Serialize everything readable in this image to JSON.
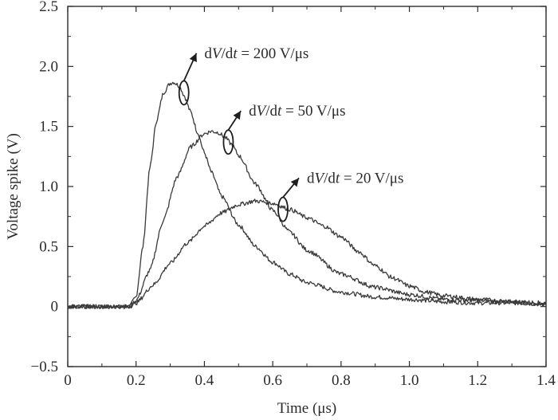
{
  "chart_data": {
    "type": "line",
    "xlabel": "Time (μs)",
    "ylabel": "Voltage spike (V)",
    "xlim": [
      0,
      1.4
    ],
    "ylim": [
      -0.5,
      2.5
    ],
    "xticks": [
      0,
      0.2,
      0.4,
      0.6,
      0.8,
      1.0,
      1.2,
      1.4
    ],
    "xtick_labels": [
      "0",
      "0.2",
      "0.4",
      "0.6",
      "0.8",
      "1.0",
      "1.2",
      "1.4"
    ],
    "yticks": [
      -0.5,
      0,
      0.5,
      1.0,
      1.5,
      2.0,
      2.5
    ],
    "ytick_labels": [
      "−0.5",
      "0",
      "0.5",
      "1.0",
      "1.5",
      "2.0",
      "2.5"
    ],
    "grid": false,
    "series": [
      {
        "name": "dV/dt = 200 V/μs",
        "x": [
          0,
          0.18,
          0.2,
          0.22,
          0.24,
          0.26,
          0.28,
          0.3,
          0.31,
          0.32,
          0.33,
          0.34,
          0.36,
          0.38,
          0.4,
          0.42,
          0.45,
          0.5,
          0.55,
          0.6,
          0.65,
          0.7,
          0.8,
          0.9,
          1.0,
          1.1,
          1.2,
          1.3,
          1.4
        ],
        "y": [
          0,
          0,
          0.08,
          0.5,
          1.15,
          1.55,
          1.78,
          1.86,
          1.87,
          1.85,
          1.82,
          1.76,
          1.62,
          1.45,
          1.28,
          1.12,
          0.92,
          0.68,
          0.5,
          0.37,
          0.27,
          0.2,
          0.12,
          0.08,
          0.06,
          0.04,
          0.03,
          0.03,
          0.02
        ]
      },
      {
        "name": "dV/dt = 50 V/μs",
        "x": [
          0,
          0.18,
          0.2,
          0.24,
          0.28,
          0.32,
          0.36,
          0.4,
          0.42,
          0.44,
          0.46,
          0.48,
          0.5,
          0.55,
          0.6,
          0.65,
          0.7,
          0.8,
          0.9,
          1.0,
          1.1,
          1.2,
          1.3,
          1.4
        ],
        "y": [
          0,
          0,
          0.05,
          0.3,
          0.72,
          1.08,
          1.33,
          1.44,
          1.46,
          1.45,
          1.41,
          1.35,
          1.26,
          1.02,
          0.8,
          0.62,
          0.47,
          0.27,
          0.16,
          0.1,
          0.06,
          0.05,
          0.04,
          0.03
        ]
      },
      {
        "name": "dV/dt = 20 V/μs",
        "x": [
          0,
          0.18,
          0.2,
          0.25,
          0.3,
          0.35,
          0.4,
          0.45,
          0.5,
          0.55,
          0.6,
          0.65,
          0.7,
          0.75,
          0.8,
          0.85,
          0.9,
          0.95,
          1.0,
          1.05,
          1.1,
          1.2,
          1.3,
          1.4
        ],
        "y": [
          0,
          0,
          0.03,
          0.18,
          0.36,
          0.53,
          0.67,
          0.78,
          0.85,
          0.88,
          0.86,
          0.81,
          0.74,
          0.67,
          0.58,
          0.46,
          0.34,
          0.24,
          0.17,
          0.12,
          0.09,
          0.06,
          0.04,
          0.02
        ]
      }
    ],
    "annotations": [
      {
        "series": 0,
        "prefix": "d",
        "italic1": "V",
        "mid": "/d",
        "italic2": "t",
        "suffix": " = 200 V/μs",
        "at": [
          0.34,
          1.78
        ],
        "label_at": [
          0.4,
          2.07
        ]
      },
      {
        "series": 1,
        "prefix": "d",
        "italic1": "V",
        "mid": "/d",
        "italic2": "t",
        "suffix": " = 50 V/μs",
        "at": [
          0.47,
          1.37
        ],
        "label_at": [
          0.53,
          1.59
        ]
      },
      {
        "series": 2,
        "prefix": "d",
        "italic1": "V",
        "mid": "/d",
        "italic2": "t",
        "suffix": " = 20 V/μs",
        "at": [
          0.63,
          0.81
        ],
        "label_at": [
          0.7,
          1.03
        ]
      }
    ]
  }
}
